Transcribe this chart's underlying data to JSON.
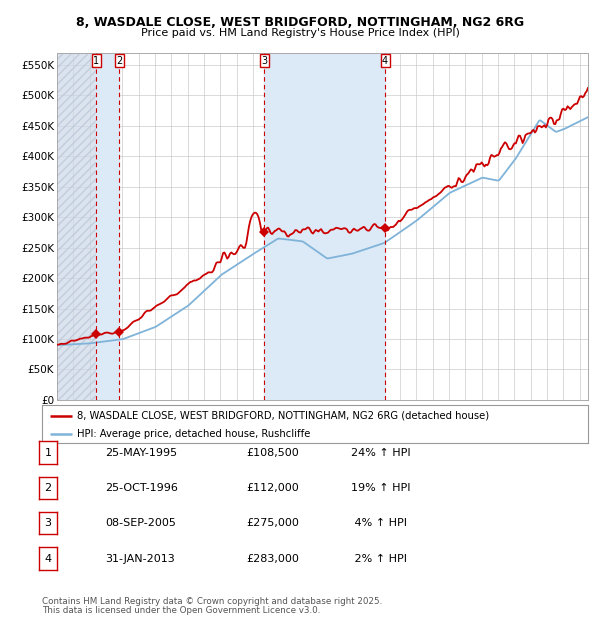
{
  "title_line1": "8, WASDALE CLOSE, WEST BRIDGFORD, NOTTINGHAM, NG2 6RG",
  "title_line2": "Price paid vs. HM Land Registry's House Price Index (HPI)",
  "ylabel_ticks": [
    "£0",
    "£50K",
    "£100K",
    "£150K",
    "£200K",
    "£250K",
    "£300K",
    "£350K",
    "£400K",
    "£450K",
    "£500K",
    "£550K"
  ],
  "ytick_values": [
    0,
    50000,
    100000,
    150000,
    200000,
    250000,
    300000,
    350000,
    400000,
    450000,
    500000,
    550000
  ],
  "ylim": [
    0,
    570000
  ],
  "xlim_start": 1993.0,
  "xlim_end": 2025.5,
  "sales": [
    {
      "num": 1,
      "date": "25-MAY-1995",
      "year": 1995.39,
      "price": 108500,
      "pct": "24%",
      "dir": "↑"
    },
    {
      "num": 2,
      "date": "25-OCT-1996",
      "year": 1996.82,
      "price": 112000,
      "pct": "19%",
      "dir": "↑"
    },
    {
      "num": 3,
      "date": "08-SEP-2005",
      "year": 2005.69,
      "price": 275000,
      "pct": "4%",
      "dir": "↑"
    },
    {
      "num": 4,
      "date": "31-JAN-2013",
      "year": 2013.08,
      "price": 283000,
      "pct": "2%",
      "dir": "↑"
    }
  ],
  "legend_line1": "8, WASDALE CLOSE, WEST BRIDGFORD, NOTTINGHAM, NG2 6RG (detached house)",
  "legend_line2": "HPI: Average price, detached house, Rushcliffe",
  "footer_line1": "Contains HM Land Registry data © Crown copyright and database right 2025.",
  "footer_line2": "This data is licensed under the Open Government Licence v3.0.",
  "hpi_color": "#7fb3d9",
  "price_color": "#cc0000",
  "hatch_color": "#cdd8e8",
  "background_color": "#ffffff",
  "grid_color": "#cccccc",
  "shade_color": "#dce9f7",
  "table_rows": [
    {
      "num": "1",
      "date": "25-MAY-1995",
      "price": "£108,500",
      "pct": "24% ↑ HPI"
    },
    {
      "num": "2",
      "date": "25-OCT-1996",
      "price": "£112,000",
      "pct": "19% ↑ HPI"
    },
    {
      "num": "3",
      "date": "08-SEP-2005",
      "price": "£275,000",
      "pct": " 4% ↑ HPI"
    },
    {
      "num": "4",
      "date": "31-JAN-2013",
      "price": "£283,000",
      "pct": " 2% ↑ HPI"
    }
  ]
}
